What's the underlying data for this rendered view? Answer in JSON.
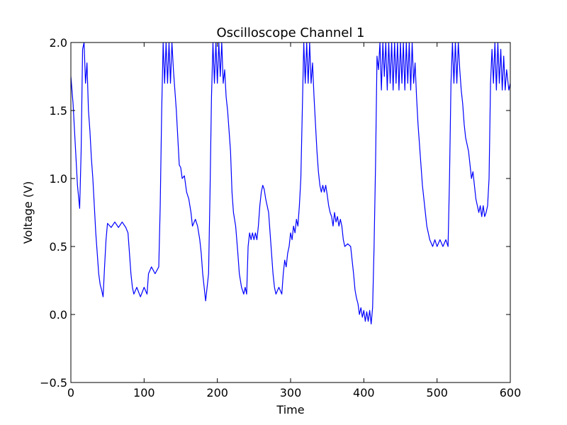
{
  "chart_data": {
    "type": "line",
    "title": "Oscilloscope Channel 1",
    "xlabel": "Time",
    "ylabel": "Voltage (V)",
    "xlim": [
      0,
      600
    ],
    "ylim": [
      -0.5,
      2.0
    ],
    "xticks": [
      0,
      100,
      200,
      300,
      400,
      500,
      600
    ],
    "yticks": [
      -0.5,
      0.0,
      0.5,
      1.0,
      1.5,
      2.0
    ],
    "x_tick_labels": [
      "0",
      "100",
      "200",
      "300",
      "400",
      "500",
      "600"
    ],
    "y_tick_labels": [
      "−0.5",
      "0.0",
      "0.5",
      "1.0",
      "1.5",
      "2.0"
    ],
    "grid": false,
    "line_color": "#0000ff",
    "series": [
      {
        "points": [
          [
            0,
            1.75
          ],
          [
            3,
            1.55
          ],
          [
            6,
            1.25
          ],
          [
            9,
            0.95
          ],
          [
            12,
            0.78
          ],
          [
            14,
            1.2
          ],
          [
            16,
            1.95
          ],
          [
            18,
            2.0
          ],
          [
            20,
            1.7
          ],
          [
            22,
            1.85
          ],
          [
            24,
            1.5
          ],
          [
            26,
            1.35
          ],
          [
            28,
            1.15
          ],
          [
            30,
            1.0
          ],
          [
            32,
            0.8
          ],
          [
            34,
            0.6
          ],
          [
            36,
            0.45
          ],
          [
            38,
            0.3
          ],
          [
            40,
            0.22
          ],
          [
            42,
            0.18
          ],
          [
            44,
            0.13
          ],
          [
            46,
            0.35
          ],
          [
            48,
            0.55
          ],
          [
            50,
            0.67
          ],
          [
            55,
            0.64
          ],
          [
            60,
            0.68
          ],
          [
            65,
            0.64
          ],
          [
            70,
            0.68
          ],
          [
            75,
            0.64
          ],
          [
            78,
            0.6
          ],
          [
            80,
            0.45
          ],
          [
            82,
            0.3
          ],
          [
            84,
            0.2
          ],
          [
            86,
            0.15
          ],
          [
            90,
            0.2
          ],
          [
            95,
            0.13
          ],
          [
            100,
            0.2
          ],
          [
            104,
            0.15
          ],
          [
            106,
            0.3
          ],
          [
            110,
            0.35
          ],
          [
            115,
            0.3
          ],
          [
            120,
            0.35
          ],
          [
            122,
            0.8
          ],
          [
            124,
            1.5
          ],
          [
            126,
            2.0
          ],
          [
            128,
            1.7
          ],
          [
            130,
            2.0
          ],
          [
            132,
            1.7
          ],
          [
            134,
            2.0
          ],
          [
            136,
            1.7
          ],
          [
            138,
            2.0
          ],
          [
            140,
            1.8
          ],
          [
            142,
            1.65
          ],
          [
            144,
            1.5
          ],
          [
            146,
            1.3
          ],
          [
            148,
            1.1
          ],
          [
            150,
            1.08
          ],
          [
            152,
            1.0
          ],
          [
            155,
            1.02
          ],
          [
            158,
            0.9
          ],
          [
            161,
            0.85
          ],
          [
            164,
            0.75
          ],
          [
            166,
            0.65
          ],
          [
            170,
            0.7
          ],
          [
            173,
            0.65
          ],
          [
            176,
            0.55
          ],
          [
            178,
            0.45
          ],
          [
            180,
            0.3
          ],
          [
            182,
            0.2
          ],
          [
            184,
            0.1
          ],
          [
            186,
            0.2
          ],
          [
            188,
            0.3
          ],
          [
            190,
            0.9
          ],
          [
            192,
            1.6
          ],
          [
            194,
            2.0
          ],
          [
            196,
            1.7
          ],
          [
            198,
            2.0
          ],
          [
            200,
            1.7
          ],
          [
            202,
            2.0
          ],
          [
            204,
            1.75
          ],
          [
            206,
            2.0
          ],
          [
            208,
            1.7
          ],
          [
            210,
            1.8
          ],
          [
            212,
            1.6
          ],
          [
            214,
            1.5
          ],
          [
            216,
            1.35
          ],
          [
            218,
            1.2
          ],
          [
            220,
            0.9
          ],
          [
            222,
            0.75
          ],
          [
            225,
            0.65
          ],
          [
            228,
            0.45
          ],
          [
            230,
            0.3
          ],
          [
            233,
            0.2
          ],
          [
            236,
            0.15
          ],
          [
            238,
            0.2
          ],
          [
            240,
            0.15
          ],
          [
            242,
            0.5
          ],
          [
            244,
            0.6
          ],
          [
            246,
            0.55
          ],
          [
            248,
            0.6
          ],
          [
            250,
            0.55
          ],
          [
            252,
            0.6
          ],
          [
            254,
            0.55
          ],
          [
            256,
            0.65
          ],
          [
            258,
            0.8
          ],
          [
            260,
            0.9
          ],
          [
            262,
            0.95
          ],
          [
            264,
            0.92
          ],
          [
            266,
            0.85
          ],
          [
            268,
            0.8
          ],
          [
            270,
            0.75
          ],
          [
            272,
            0.6
          ],
          [
            274,
            0.45
          ],
          [
            276,
            0.3
          ],
          [
            278,
            0.2
          ],
          [
            280,
            0.15
          ],
          [
            284,
            0.2
          ],
          [
            288,
            0.15
          ],
          [
            290,
            0.3
          ],
          [
            292,
            0.4
          ],
          [
            294,
            0.35
          ],
          [
            296,
            0.45
          ],
          [
            298,
            0.5
          ],
          [
            300,
            0.6
          ],
          [
            302,
            0.55
          ],
          [
            304,
            0.65
          ],
          [
            306,
            0.6
          ],
          [
            308,
            0.7
          ],
          [
            310,
            0.65
          ],
          [
            312,
            0.8
          ],
          [
            314,
            1.0
          ],
          [
            316,
            1.5
          ],
          [
            318,
            2.0
          ],
          [
            320,
            1.7
          ],
          [
            322,
            2.0
          ],
          [
            324,
            1.7
          ],
          [
            326,
            2.0
          ],
          [
            328,
            1.7
          ],
          [
            330,
            1.85
          ],
          [
            332,
            1.6
          ],
          [
            334,
            1.4
          ],
          [
            336,
            1.2
          ],
          [
            338,
            1.05
          ],
          [
            340,
            0.95
          ],
          [
            342,
            0.9
          ],
          [
            344,
            0.95
          ],
          [
            346,
            0.9
          ],
          [
            348,
            0.95
          ],
          [
            350,
            0.88
          ],
          [
            352,
            0.8
          ],
          [
            354,
            0.75
          ],
          [
            356,
            0.72
          ],
          [
            358,
            0.65
          ],
          [
            360,
            0.75
          ],
          [
            362,
            0.68
          ],
          [
            364,
            0.72
          ],
          [
            366,
            0.65
          ],
          [
            368,
            0.7
          ],
          [
            370,
            0.65
          ],
          [
            372,
            0.55
          ],
          [
            374,
            0.5
          ],
          [
            378,
            0.52
          ],
          [
            382,
            0.5
          ],
          [
            384,
            0.4
          ],
          [
            386,
            0.3
          ],
          [
            388,
            0.18
          ],
          [
            390,
            0.12
          ],
          [
            392,
            0.08
          ],
          [
            394,
            0.0
          ],
          [
            396,
            0.05
          ],
          [
            398,
            -0.02
          ],
          [
            400,
            0.03
          ],
          [
            402,
            -0.05
          ],
          [
            404,
            0.02
          ],
          [
            406,
            -0.05
          ],
          [
            408,
            0.03
          ],
          [
            410,
            -0.07
          ],
          [
            412,
            0.05
          ],
          [
            414,
            0.5
          ],
          [
            416,
            1.1
          ],
          [
            418,
            1.9
          ],
          [
            420,
            1.8
          ],
          [
            422,
            2.0
          ],
          [
            424,
            1.65
          ],
          [
            426,
            2.0
          ],
          [
            428,
            1.75
          ],
          [
            430,
            2.0
          ],
          [
            432,
            1.65
          ],
          [
            434,
            2.0
          ],
          [
            436,
            1.7
          ],
          [
            438,
            2.0
          ],
          [
            440,
            1.65
          ],
          [
            442,
            2.0
          ],
          [
            444,
            1.7
          ],
          [
            446,
            2.0
          ],
          [
            448,
            1.65
          ],
          [
            450,
            2.0
          ],
          [
            452,
            1.7
          ],
          [
            454,
            2.0
          ],
          [
            456,
            1.65
          ],
          [
            458,
            2.0
          ],
          [
            460,
            1.7
          ],
          [
            462,
            2.0
          ],
          [
            464,
            1.65
          ],
          [
            466,
            2.0
          ],
          [
            468,
            1.7
          ],
          [
            470,
            1.85
          ],
          [
            472,
            1.6
          ],
          [
            474,
            1.4
          ],
          [
            476,
            1.25
          ],
          [
            478,
            1.1
          ],
          [
            480,
            0.95
          ],
          [
            482,
            0.85
          ],
          [
            484,
            0.75
          ],
          [
            486,
            0.65
          ],
          [
            488,
            0.6
          ],
          [
            490,
            0.55
          ],
          [
            494,
            0.5
          ],
          [
            497,
            0.55
          ],
          [
            500,
            0.5
          ],
          [
            504,
            0.55
          ],
          [
            508,
            0.5
          ],
          [
            512,
            0.55
          ],
          [
            515,
            0.5
          ],
          [
            517,
            1.0
          ],
          [
            519,
            1.7
          ],
          [
            521,
            2.0
          ],
          [
            523,
            1.7
          ],
          [
            525,
            2.0
          ],
          [
            527,
            1.7
          ],
          [
            529,
            2.0
          ],
          [
            531,
            1.8
          ],
          [
            533,
            1.65
          ],
          [
            535,
            1.55
          ],
          [
            537,
            1.4
          ],
          [
            539,
            1.3
          ],
          [
            541,
            1.25
          ],
          [
            543,
            1.2
          ],
          [
            545,
            1.1
          ],
          [
            547,
            1.0
          ],
          [
            549,
            1.05
          ],
          [
            551,
            0.95
          ],
          [
            553,
            0.85
          ],
          [
            555,
            0.8
          ],
          [
            557,
            0.75
          ],
          [
            559,
            0.8
          ],
          [
            561,
            0.72
          ],
          [
            563,
            0.8
          ],
          [
            565,
            0.72
          ],
          [
            567,
            0.75
          ],
          [
            569,
            0.8
          ],
          [
            571,
            1.0
          ],
          [
            573,
            1.7
          ],
          [
            575,
            1.95
          ],
          [
            577,
            1.7
          ],
          [
            579,
            2.0
          ],
          [
            581,
            1.65
          ],
          [
            583,
            2.0
          ],
          [
            585,
            1.7
          ],
          [
            587,
            1.95
          ],
          [
            589,
            1.65
          ],
          [
            591,
            1.9
          ],
          [
            593,
            1.65
          ],
          [
            595,
            1.8
          ],
          [
            598,
            1.65
          ],
          [
            600,
            1.7
          ]
        ]
      }
    ]
  }
}
